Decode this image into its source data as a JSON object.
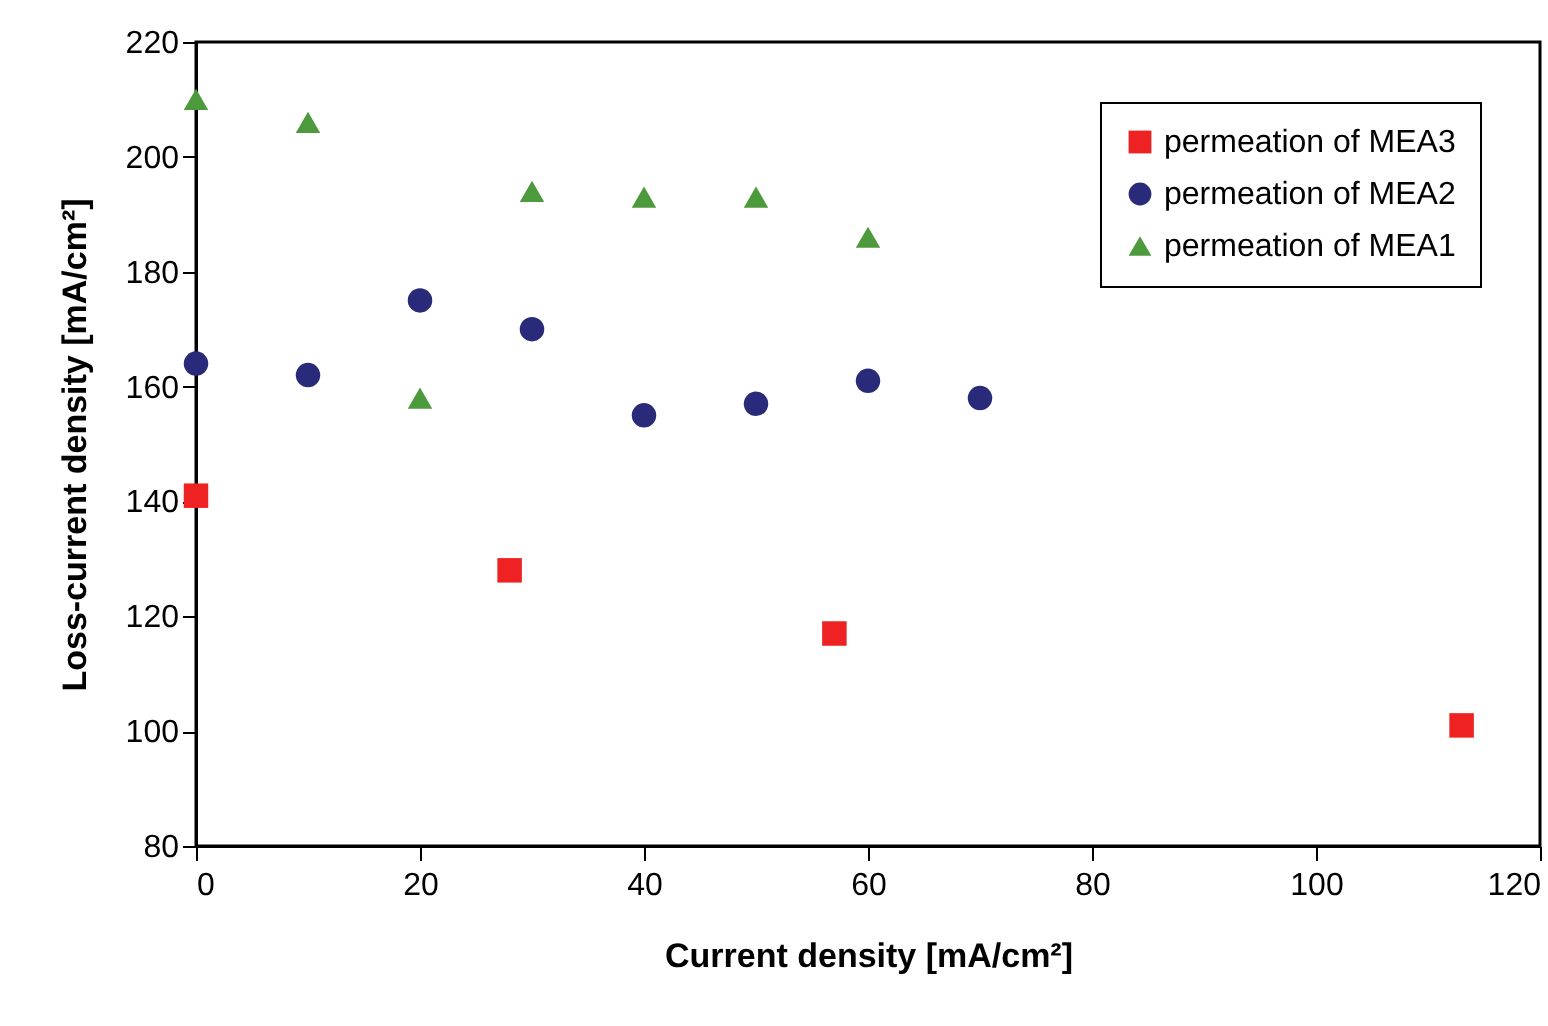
{
  "chart_data": {
    "type": "scatter",
    "xlabel": "Current density [mA/cm²]",
    "ylabel": "Loss-current density [mA/cm²]",
    "xlim": [
      0,
      120
    ],
    "xticks": [
      0,
      20,
      40,
      60,
      80,
      100,
      120
    ],
    "ylim": [
      80,
      220
    ],
    "yticks": [
      80,
      100,
      120,
      140,
      160,
      180,
      200,
      220
    ],
    "grid": false,
    "legend": "top right",
    "series": [
      {
        "name": "permeation of MEA3",
        "color": "#ee2222",
        "marker": "square",
        "x": [
          0,
          28,
          57,
          113
        ],
        "values": [
          141,
          128,
          117,
          101
        ]
      },
      {
        "name": "permeation of MEA2",
        "color": "#2a2a7a",
        "marker": "circle",
        "x": [
          0,
          10,
          20,
          30,
          40,
          50,
          60,
          70
        ],
        "values": [
          164,
          162,
          175,
          170,
          155,
          157,
          161,
          158
        ]
      },
      {
        "name": "permeation of MEA1",
        "color": "#4c9a3c",
        "marker": "triangle",
        "x": [
          0,
          10,
          20,
          30,
          40,
          50,
          60
        ],
        "values": [
          210,
          206,
          158,
          194,
          193,
          193,
          186
        ]
      }
    ]
  }
}
